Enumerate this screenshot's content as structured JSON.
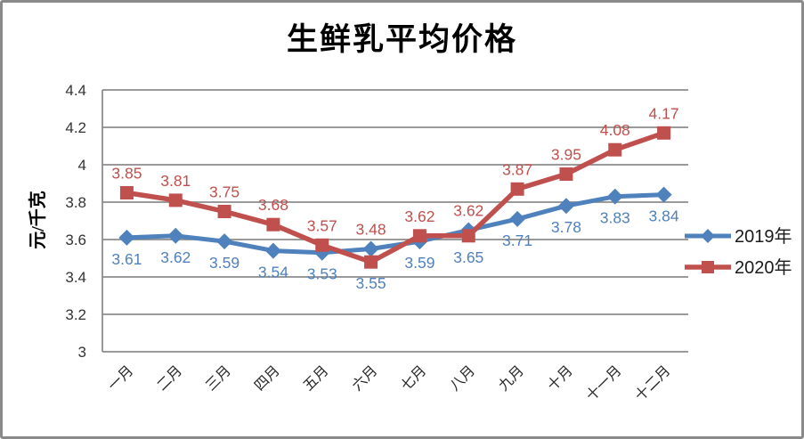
{
  "chart_data": {
    "type": "line",
    "title": "生鲜乳平均价格",
    "ylabel": "元/千克",
    "xlabel": "",
    "categories": [
      "一月",
      "二月",
      "三月",
      "四月",
      "五月",
      "六月",
      "七月",
      "八月",
      "九月",
      "十月",
      "十一月",
      "十二月"
    ],
    "series": [
      {
        "name": "2019年",
        "color": "#4F81BD",
        "marker": "diamond",
        "label_position": "below",
        "values": [
          3.61,
          3.62,
          3.59,
          3.54,
          3.53,
          3.55,
          3.59,
          3.65,
          3.71,
          3.78,
          3.83,
          3.84
        ]
      },
      {
        "name": "2020年",
        "color": "#C0504D",
        "marker": "square",
        "label_position": "above",
        "values": [
          3.85,
          3.81,
          3.75,
          3.68,
          3.57,
          3.48,
          3.62,
          3.62,
          3.87,
          3.95,
          4.08,
          4.17
        ]
      }
    ],
    "ylim": [
      3,
      4.4
    ],
    "ytick_step": 0.2,
    "ytick_labels": [
      "3",
      "3.2",
      "3.4",
      "3.6",
      "3.8",
      "4",
      "4.2",
      "4.4"
    ],
    "grid": true,
    "data_labels": true,
    "legend_position": "right"
  },
  "colors": {
    "grid": "#8C8C8C",
    "axis": "#8C8C8C",
    "frame_border": "#8A8A8A",
    "tick_text": "#333333",
    "x_label_text": "#262626",
    "legend_text": "#1a1a1a"
  }
}
